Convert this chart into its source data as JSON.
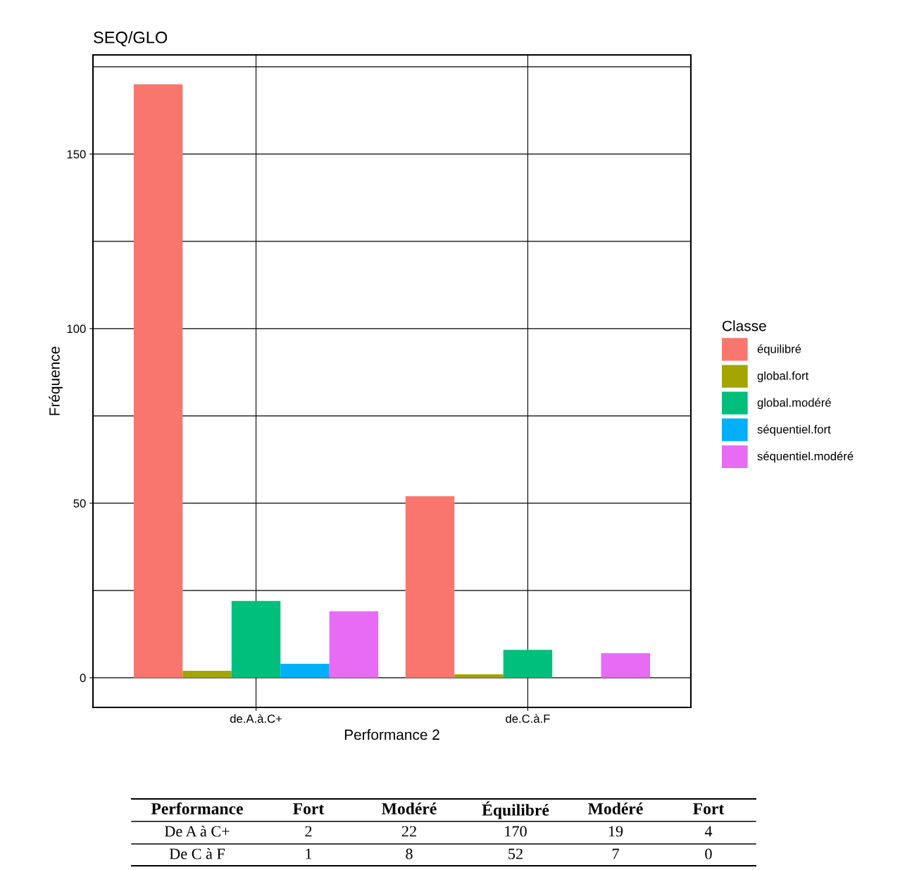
{
  "chart_data": {
    "type": "bar",
    "title": "SEQ/GLO",
    "xlabel": "Performance 2",
    "ylabel": "Fréquence",
    "legend_title": "Classe",
    "categories": [
      "de.A.à.C+",
      "de.C.à.F"
    ],
    "series": [
      {
        "name": "équilibré",
        "color": "#f8766d",
        "values": [
          170,
          52
        ]
      },
      {
        "name": "global.fort",
        "color": "#a3a500",
        "values": [
          2,
          1
        ]
      },
      {
        "name": "global.modéré",
        "color": "#00bf7d",
        "values": [
          22,
          8
        ]
      },
      {
        "name": "séquentiel.fort",
        "color": "#00b0f6",
        "values": [
          4,
          0
        ]
      },
      {
        "name": "séquentiel.modéré",
        "color": "#e76bf3",
        "values": [
          19,
          7
        ]
      }
    ],
    "ylim": [
      -8.5,
      178.4
    ],
    "yticks": [
      0,
      {
        "value": 25,
        "label": null
      },
      50,
      {
        "value": 75,
        "label": null
      },
      100,
      {
        "value": 125,
        "label": null
      },
      150,
      {
        "value": 175,
        "label": null
      }
    ],
    "grid": true,
    "legend": "right",
    "annotations": [
      "Performance",
      "Fort",
      "Modéré",
      "Équilibré",
      "Modéré",
      "Fort",
      "De A à C+",
      "2",
      "22",
      "170",
      "19",
      "4",
      "De C à F",
      "1",
      "8",
      "52",
      "7",
      "0"
    ]
  }
}
